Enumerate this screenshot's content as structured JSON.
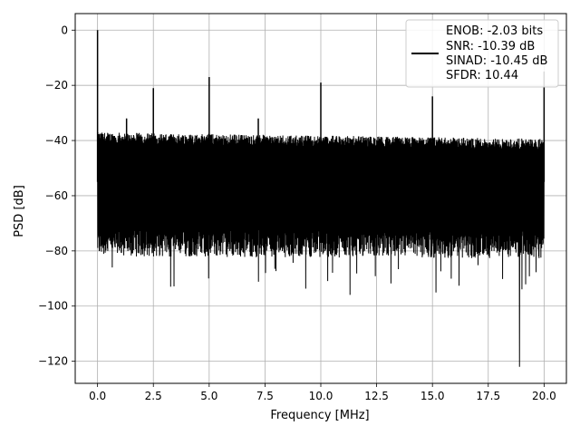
{
  "chart_data": {
    "type": "line",
    "title": "",
    "xlabel": "Frequency [MHz]",
    "ylabel": "PSD [dB]",
    "xlim": [
      -1.0,
      21.0
    ],
    "ylim": [
      -128,
      6
    ],
    "xticks": [
      0.0,
      2.5,
      5.0,
      7.5,
      10.0,
      12.5,
      15.0,
      17.5,
      20.0
    ],
    "xtick_labels": [
      "0.0",
      "2.5",
      "5.0",
      "7.5",
      "10.0",
      "12.5",
      "15.0",
      "17.5",
      "20.0"
    ],
    "yticks": [
      0,
      -20,
      -40,
      -60,
      -80,
      -100,
      -120
    ],
    "ytick_labels": [
      "0",
      "−20",
      "−40",
      "−60",
      "−80",
      "−100",
      "−120"
    ],
    "grid": true,
    "legend_position": "top-right",
    "legend_lines": [
      "ENOB: -2.03 bits",
      "SNR: -10.39 dB",
      "SINAD: -10.45 dB",
      "SFDR: 10.44"
    ],
    "series_color": "#000000",
    "noise_floor": {
      "top_db": -38,
      "bottom_db": -80,
      "deep_min_db": -122,
      "deep_min_freq_mhz": 18.9
    },
    "peaks": [
      {
        "x": 0.0,
        "y": 0
      },
      {
        "x": 1.3,
        "y": -32
      },
      {
        "x": 2.5,
        "y": -21
      },
      {
        "x": 5.0,
        "y": -17
      },
      {
        "x": 7.2,
        "y": -32
      },
      {
        "x": 10.0,
        "y": -19
      },
      {
        "x": 15.0,
        "y": -24
      },
      {
        "x": 20.0,
        "y": -15
      }
    ]
  }
}
